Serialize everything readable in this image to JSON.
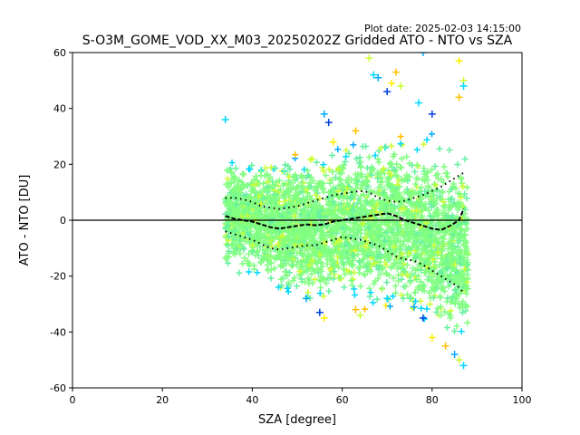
{
  "plot_date": "Plot date: 2025-02-03 14:15:00",
  "chart_data": {
    "type": "scatter",
    "title": "S-O3M_GOME_VOD_XX_M03_20250202Z Gridded ATO - NTO vs SZA",
    "xlabel": "SZA [degree]",
    "ylabel": "ATO - NTO [DU]",
    "xlim": [
      0,
      100
    ],
    "ylim": [
      -60,
      60
    ],
    "xticks": [
      0,
      20,
      40,
      60,
      80,
      100
    ],
    "yticks": [
      -60,
      -40,
      -20,
      0,
      20,
      40,
      60
    ],
    "grid": false,
    "legend": "none",
    "marker": "plus",
    "zero_line": 0,
    "colors": {
      "dominant": "#7cf97c",
      "palette": [
        "#80ff80",
        "#66f0a0",
        "#00d8ff",
        "#00aaff",
        "#0040e0",
        "#ccff33",
        "#ffee00",
        "#ffc000"
      ]
    },
    "cloud_envelope": [
      {
        "x": 34,
        "lo": -18,
        "hi": 22
      },
      {
        "x": 40,
        "lo": -22,
        "hi": 22
      },
      {
        "x": 45,
        "lo": -26,
        "hi": 22
      },
      {
        "x": 50,
        "lo": -28,
        "hi": 22
      },
      {
        "x": 55,
        "lo": -30,
        "hi": 24
      },
      {
        "x": 60,
        "lo": -29,
        "hi": 26
      },
      {
        "x": 65,
        "lo": -30,
        "hi": 28
      },
      {
        "x": 70,
        "lo": -31,
        "hi": 30
      },
      {
        "x": 75,
        "lo": -34,
        "hi": 30
      },
      {
        "x": 80,
        "lo": -38,
        "hi": 28
      },
      {
        "x": 84,
        "lo": -44,
        "hi": 26
      },
      {
        "x": 88,
        "lo": -48,
        "hi": 24
      }
    ],
    "outliers": [
      {
        "x": 34,
        "y": 36
      },
      {
        "x": 56,
        "y": 38
      },
      {
        "x": 57,
        "y": 35
      },
      {
        "x": 58,
        "y": 28
      },
      {
        "x": 63,
        "y": 32
      },
      {
        "x": 66,
        "y": 58
      },
      {
        "x": 67,
        "y": 52
      },
      {
        "x": 68,
        "y": 51
      },
      {
        "x": 70,
        "y": 46
      },
      {
        "x": 71,
        "y": 49
      },
      {
        "x": 72,
        "y": 53
      },
      {
        "x": 73,
        "y": 48
      },
      {
        "x": 77,
        "y": 42
      },
      {
        "x": 78,
        "y": 60
      },
      {
        "x": 80,
        "y": 38
      },
      {
        "x": 86,
        "y": 57
      },
      {
        "x": 86,
        "y": 44
      },
      {
        "x": 87,
        "y": 50
      },
      {
        "x": 87,
        "y": 48
      },
      {
        "x": 52,
        "y": -28
      },
      {
        "x": 55,
        "y": -33
      },
      {
        "x": 56,
        "y": -35
      },
      {
        "x": 63,
        "y": -32
      },
      {
        "x": 64,
        "y": -34
      },
      {
        "x": 70,
        "y": -28
      },
      {
        "x": 76,
        "y": -31
      },
      {
        "x": 78,
        "y": -35
      },
      {
        "x": 80,
        "y": -42
      },
      {
        "x": 83,
        "y": -45
      },
      {
        "x": 86,
        "y": -50
      },
      {
        "x": 87,
        "y": -52
      },
      {
        "x": 85,
        "y": -48
      }
    ],
    "mean": {
      "x": [
        34,
        36,
        38,
        40,
        42,
        44,
        46,
        48,
        50,
        52,
        54,
        56,
        58,
        60,
        62,
        64,
        66,
        68,
        70,
        72,
        74,
        76,
        78,
        80,
        82,
        84,
        86,
        87
      ],
      "y": [
        1.5,
        0.5,
        0,
        -0.5,
        -1.5,
        -2.5,
        -3,
        -2.5,
        -2,
        -1.5,
        -1.8,
        -1.5,
        -0.5,
        0,
        0.5,
        1,
        1.5,
        2,
        2.5,
        1.5,
        0,
        -1,
        -2,
        -3,
        -3.5,
        -2,
        0,
        4
      ]
    },
    "upper": {
      "x": [
        34,
        36,
        38,
        40,
        42,
        44,
        46,
        48,
        50,
        52,
        54,
        56,
        58,
        60,
        62,
        64,
        66,
        68,
        70,
        72,
        74,
        76,
        78,
        80,
        82,
        84,
        86,
        87
      ],
      "y": [
        8,
        8,
        7.5,
        6.5,
        5,
        4.5,
        4,
        4.5,
        5,
        6,
        7,
        8,
        9,
        9.5,
        10,
        10.5,
        10,
        8,
        7,
        6.5,
        7,
        8,
        9,
        10.5,
        12,
        14,
        16,
        17
      ]
    },
    "lower": {
      "x": [
        34,
        36,
        38,
        40,
        42,
        44,
        46,
        48,
        50,
        52,
        54,
        56,
        58,
        60,
        62,
        64,
        66,
        68,
        70,
        72,
        74,
        76,
        78,
        80,
        82,
        84,
        86,
        87
      ],
      "y": [
        -4,
        -5,
        -6,
        -7,
        -8.5,
        -10,
        -10.5,
        -10,
        -9.5,
        -9,
        -9,
        -8,
        -7,
        -6,
        -6.5,
        -7,
        -8,
        -9,
        -11,
        -13,
        -14,
        -14.5,
        -16,
        -18,
        -20,
        -22,
        -24,
        -26
      ]
    }
  }
}
